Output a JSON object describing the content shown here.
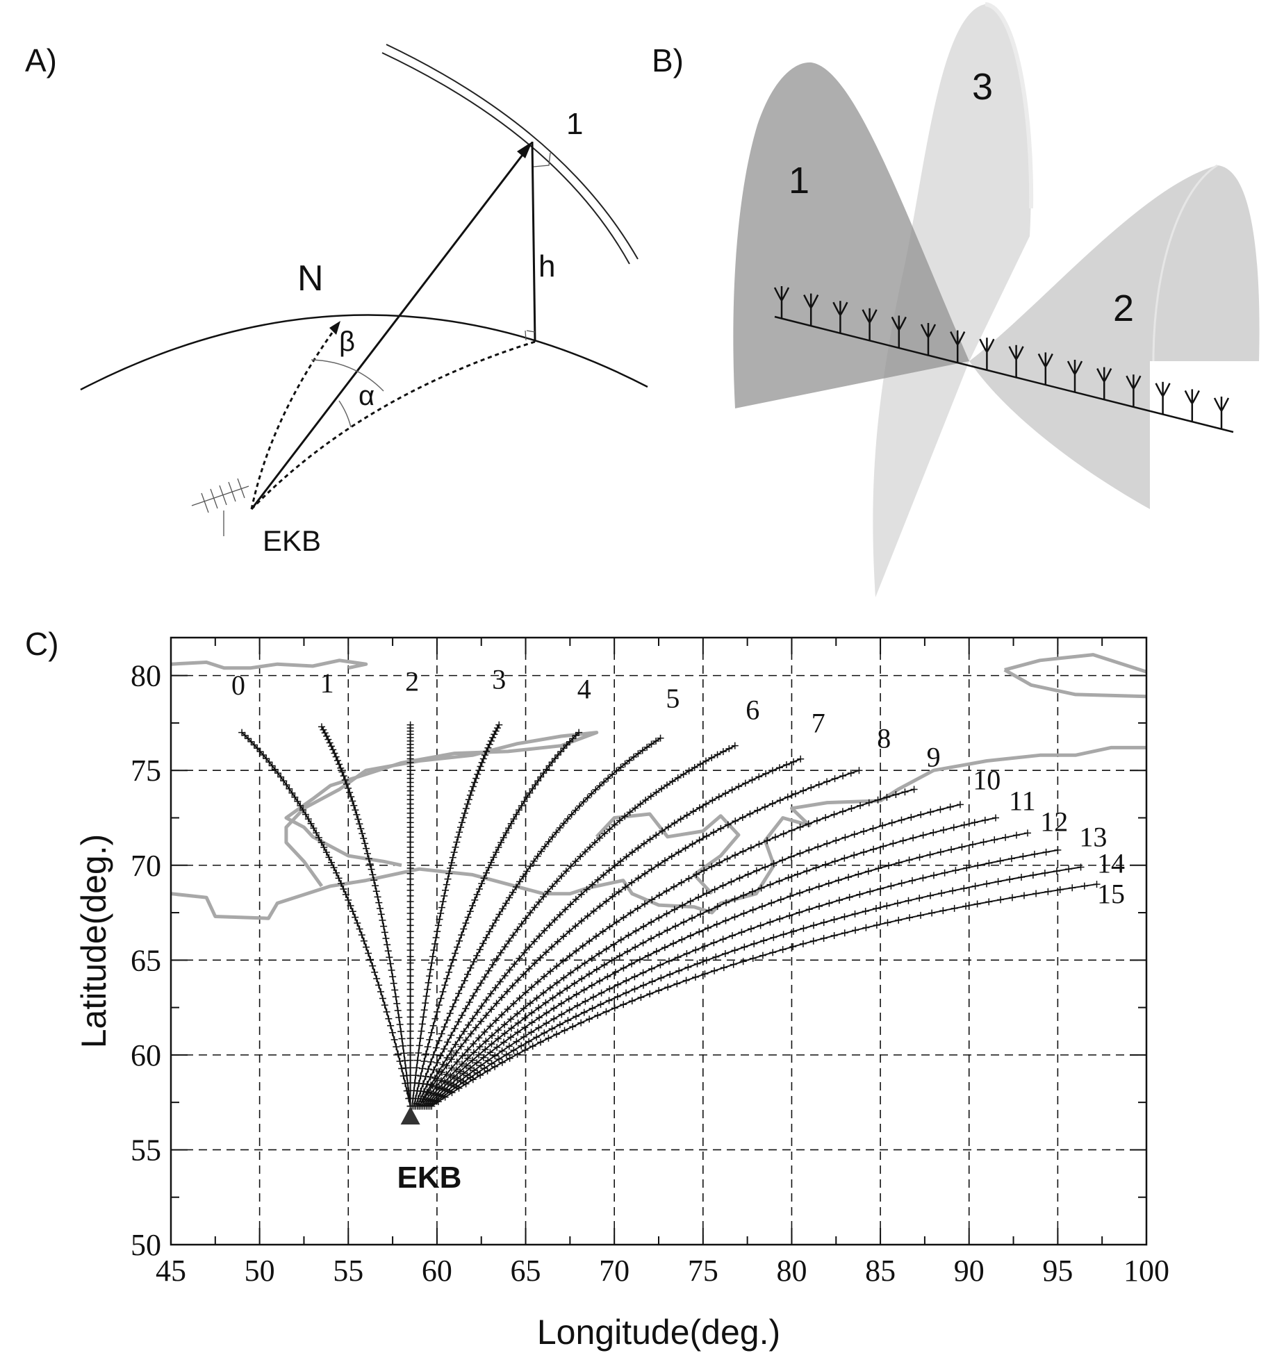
{
  "panels": {
    "a": {
      "label": "A)",
      "north_label": "N",
      "layer_label": "1",
      "height_label": "h",
      "beta_label": "β",
      "alpha_label": "α",
      "station_label": "EKB"
    },
    "b": {
      "label": "B)",
      "beam_labels": [
        "1",
        "3",
        "2"
      ],
      "antenna_count": 16
    },
    "c": {
      "label": "C)",
      "station_label": "EKB"
    }
  },
  "chart_data": {
    "type": "line",
    "title": "",
    "xlabel": "Longitude(deg.)",
    "ylabel": "Latitude(deg.)",
    "xlim": [
      45,
      100
    ],
    "ylim": [
      50,
      82
    ],
    "x_ticks": [
      45,
      50,
      55,
      60,
      65,
      70,
      75,
      80,
      85,
      90,
      95,
      100
    ],
    "y_ticks": [
      50,
      55,
      60,
      65,
      70,
      75,
      80
    ],
    "grid": true,
    "station": {
      "name": "EKB",
      "lon": 58.5,
      "lat": 56.7
    },
    "series": [
      {
        "name": "0",
        "start": [
          58.5,
          57.3
        ],
        "end": [
          49.0,
          77.0
        ],
        "label_pos": [
          48.8,
          79.0
        ]
      },
      {
        "name": "1",
        "start": [
          58.5,
          57.3
        ],
        "end": [
          53.5,
          77.3
        ],
        "label_pos": [
          53.8,
          79.1
        ]
      },
      {
        "name": "2",
        "start": [
          58.5,
          57.3
        ],
        "end": [
          58.5,
          77.4
        ],
        "label_pos": [
          58.6,
          79.2
        ]
      },
      {
        "name": "3",
        "start": [
          58.6,
          57.3
        ],
        "end": [
          63.5,
          77.4
        ],
        "label_pos": [
          63.5,
          79.3
        ]
      },
      {
        "name": "4",
        "start": [
          58.7,
          57.3
        ],
        "end": [
          68.0,
          77.0
        ],
        "label_pos": [
          68.3,
          78.8
        ]
      },
      {
        "name": "5",
        "start": [
          58.8,
          57.3
        ],
        "end": [
          72.6,
          76.7
        ],
        "label_pos": [
          73.3,
          78.3
        ]
      },
      {
        "name": "6",
        "start": [
          58.9,
          57.3
        ],
        "end": [
          76.8,
          76.3
        ],
        "label_pos": [
          77.8,
          77.7
        ]
      },
      {
        "name": "7",
        "start": [
          59.0,
          57.3
        ],
        "end": [
          80.5,
          75.6
        ],
        "label_pos": [
          81.5,
          77.0
        ]
      },
      {
        "name": "8",
        "start": [
          59.0,
          57.3
        ],
        "end": [
          83.8,
          75.0
        ],
        "label_pos": [
          85.2,
          76.2
        ]
      },
      {
        "name": "9",
        "start": [
          59.1,
          57.3
        ],
        "end": [
          86.9,
          74.0
        ],
        "label_pos": [
          88.0,
          75.2
        ]
      },
      {
        "name": "10",
        "start": [
          59.2,
          57.3
        ],
        "end": [
          89.5,
          73.2
        ],
        "label_pos": [
          91.0,
          74.0
        ]
      },
      {
        "name": "11",
        "start": [
          59.3,
          57.3
        ],
        "end": [
          91.5,
          72.5
        ],
        "label_pos": [
          93.0,
          72.9
        ]
      },
      {
        "name": "12",
        "start": [
          59.4,
          57.3
        ],
        "end": [
          93.3,
          71.7
        ],
        "label_pos": [
          94.8,
          71.8
        ]
      },
      {
        "name": "13",
        "start": [
          59.5,
          57.3
        ],
        "end": [
          95.0,
          70.8
        ],
        "label_pos": [
          97.0,
          71.0
        ]
      },
      {
        "name": "14",
        "start": [
          59.6,
          57.3
        ],
        "end": [
          96.3,
          69.9
        ],
        "label_pos": [
          98.0,
          69.6
        ]
      },
      {
        "name": "15",
        "start": [
          59.7,
          57.3
        ],
        "end": [
          97.2,
          69.0
        ],
        "label_pos": [
          98.0,
          68.0
        ]
      }
    ],
    "coastlines": [
      [
        [
          45,
          80.6
        ],
        [
          47,
          80.7
        ],
        [
          48,
          80.4
        ],
        [
          49.5,
          80.4
        ],
        [
          51,
          80.6
        ],
        [
          53,
          80.5
        ],
        [
          54.5,
          80.8
        ],
        [
          56,
          80.6
        ],
        [
          55,
          80.4
        ]
      ],
      [
        [
          45,
          68.5
        ],
        [
          47,
          68.3
        ],
        [
          47.5,
          67.3
        ],
        [
          50.5,
          67.2
        ],
        [
          51,
          68.0
        ],
        [
          54,
          68.9
        ],
        [
          56,
          69.2
        ],
        [
          59,
          69.8
        ],
        [
          62,
          69.5
        ],
        [
          64,
          69.0
        ],
        [
          66,
          68.5
        ],
        [
          67.5,
          68.5
        ],
        [
          68.5,
          68.8
        ],
        [
          70.5,
          69.2
        ],
        [
          71,
          68.5
        ],
        [
          72.5,
          67.9
        ],
        [
          74.5,
          67.8
        ],
        [
          75.5,
          67.5
        ],
        [
          76,
          68.0
        ],
        [
          78,
          68.5
        ],
        [
          79,
          70.0
        ],
        [
          78.5,
          71.3
        ],
        [
          79.5,
          72.5
        ],
        [
          81,
          72.1
        ],
        [
          80,
          73.0
        ],
        [
          82,
          73.3
        ],
        [
          85,
          73.4
        ],
        [
          86,
          74.0
        ],
        [
          88,
          75.0
        ],
        [
          91,
          75.5
        ],
        [
          94,
          75.8
        ],
        [
          96,
          75.8
        ],
        [
          98,
          76.2
        ],
        [
          100,
          76.2
        ]
      ],
      [
        [
          53.5,
          68.9
        ],
        [
          52.5,
          70.2
        ],
        [
          51.5,
          71.2
        ],
        [
          51.5,
          72.0
        ],
        [
          52.5,
          73.0
        ],
        [
          54.5,
          74.0
        ],
        [
          56,
          75.0
        ],
        [
          59,
          75.5
        ],
        [
          62,
          75.8
        ],
        [
          64.5,
          76.4
        ],
        [
          67,
          76.8
        ],
        [
          69,
          77.0
        ],
        [
          67,
          76.3
        ],
        [
          64,
          76.0
        ],
        [
          61,
          75.9
        ],
        [
          58,
          75.4
        ],
        [
          56,
          74.8
        ],
        [
          54,
          74.2
        ],
        [
          53,
          73.5
        ],
        [
          51.5,
          72.5
        ],
        [
          52.5,
          72.0
        ],
        [
          53,
          71.5
        ],
        [
          54,
          71.0
        ],
        [
          55,
          70.5
        ],
        [
          57,
          70.2
        ],
        [
          58,
          70.0
        ]
      ],
      [
        [
          69,
          71.5
        ],
        [
          70,
          72.5
        ],
        [
          72,
          72.7
        ],
        [
          73,
          71.5
        ],
        [
          75,
          71.8
        ],
        [
          76,
          72.6
        ],
        [
          77,
          71.6
        ],
        [
          76,
          70.5
        ],
        [
          74.5,
          69.5
        ],
        [
          75.5,
          68.5
        ]
      ],
      [
        [
          92,
          80.3
        ],
        [
          94,
          80.8
        ],
        [
          97,
          81.1
        ],
        [
          100,
          80.2
        ]
      ],
      [
        [
          92,
          80.3
        ],
        [
          93.5,
          79.5
        ],
        [
          96,
          79.0
        ],
        [
          100,
          78.9
        ]
      ]
    ]
  }
}
